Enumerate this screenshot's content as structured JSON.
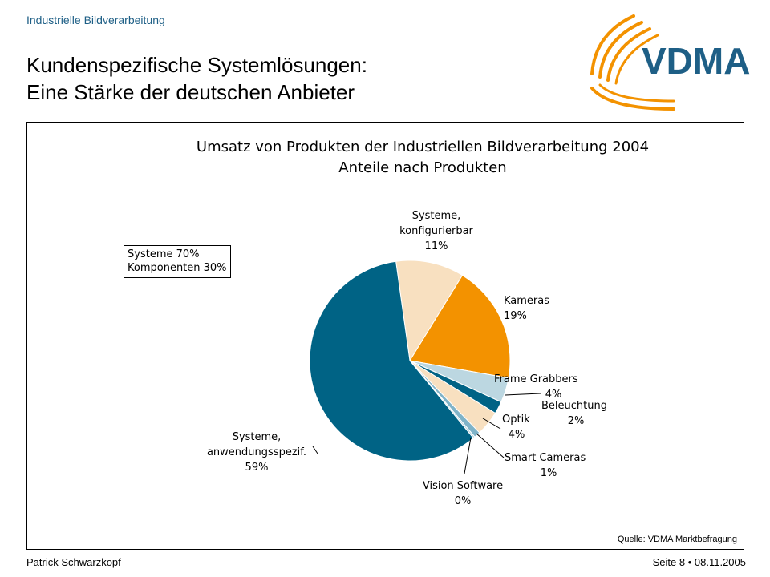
{
  "header": {
    "subtitle": "Industrielle Bildverarbeitung",
    "title_line1": "Kundenspezifische Systemlösungen:",
    "title_line2": "Eine Stärke der deutschen Anbieter",
    "logo_text": "VDMA"
  },
  "summary_box": {
    "line1": "Systeme 70%",
    "line2": "Komponenten 30%"
  },
  "chart_data": {
    "type": "pie",
    "title_line1": "Umsatz von Produkten der Industriellen Bildverarbeitung 2004",
    "title_line2": "Anteile nach Produkten",
    "slices": [
      {
        "label_lines": [
          "Systeme,",
          "konfigurierbar"
        ],
        "pct_label": "11%",
        "value": 11,
        "color": "#f8e0c0"
      },
      {
        "label_lines": [
          "Kameras"
        ],
        "pct_label": "19%",
        "value": 19,
        "color": "#f39200"
      },
      {
        "label_lines": [
          "Frame Grabbers"
        ],
        "pct_label": "4%",
        "value": 4,
        "color": "#bcd7e1"
      },
      {
        "label_lines": [
          "Beleuchtung"
        ],
        "pct_label": "2%",
        "value": 2,
        "color": "#006385"
      },
      {
        "label_lines": [
          "Optik"
        ],
        "pct_label": "4%",
        "value": 4,
        "color": "#f8e0c0"
      },
      {
        "label_lines": [
          "Smart Cameras"
        ],
        "pct_label": "1%",
        "value": 1,
        "color": "#7fb3c8"
      },
      {
        "label_lines": [
          "Vision Software"
        ],
        "pct_label": "0%",
        "value": 0.3,
        "color": "#bcd7e1"
      },
      {
        "label_lines": [
          "Systeme,",
          "anwendungsspezif."
        ],
        "pct_label": "59%",
        "value": 58.7,
        "color": "#006385"
      }
    ],
    "legend": "none",
    "source": "Quelle: VDMA Marktbefragung"
  },
  "footer": {
    "author": "Patrick Schwarzkopf",
    "page": "Seite 8 • 08.11.2005"
  }
}
